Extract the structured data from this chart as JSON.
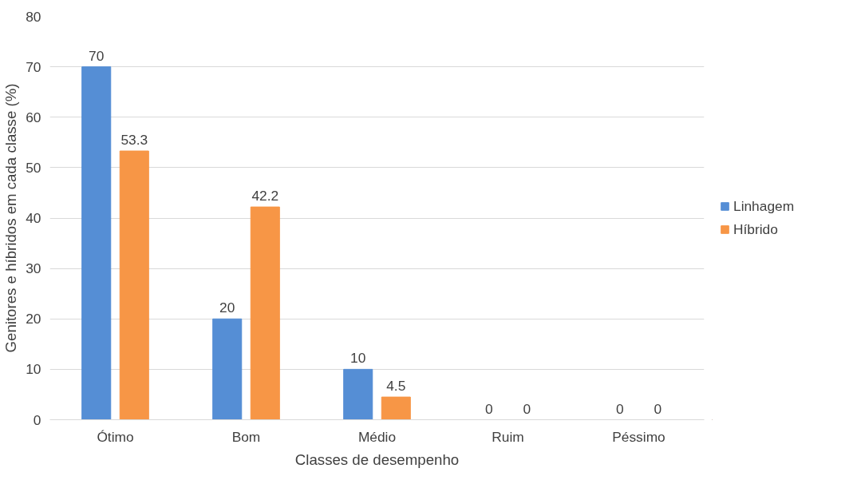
{
  "chart_data": {
    "type": "bar",
    "xlabel": "Classes de desempenho",
    "ylabel": "Genitores e híbridos em cada classe (%)",
    "categories": [
      "Ótimo",
      "Bom",
      "Médio",
      "Ruim",
      "Péssimo"
    ],
    "series": [
      {
        "name": "Linhagem",
        "color": "#558ed5",
        "values": [
          70,
          20,
          10,
          0,
          0
        ]
      },
      {
        "name": "Híbrido",
        "color": "#f79646",
        "values": [
          53.3,
          42.2,
          4.5,
          0,
          0
        ]
      }
    ],
    "ylim": [
      0,
      80
    ],
    "yticks": [
      0,
      10,
      20,
      30,
      40,
      50,
      60,
      70,
      80
    ],
    "grid": "y",
    "legend": "right",
    "data_labels": true
  }
}
